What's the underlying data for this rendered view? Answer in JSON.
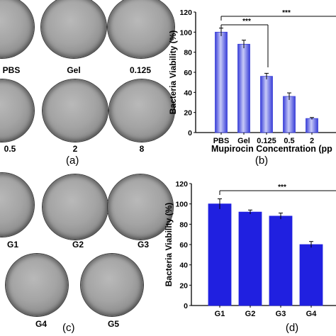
{
  "panel_a": {
    "letter": "(a)",
    "dishes": [
      "PBS",
      "Gel",
      "0.125",
      "0.5",
      "2",
      "8"
    ]
  },
  "panel_c": {
    "letter": "(c)",
    "dishes": [
      "G1",
      "G2",
      "G3",
      "G4",
      "G5"
    ]
  },
  "panel_b_letter": "(b)",
  "panel_d_letter": "(d)",
  "colors": {
    "bar": "#2020e0",
    "bar_b_light": "#aeb2f6",
    "bar_b_dark": "#3a3fd8"
  },
  "chart_data": [
    {
      "type": "bar",
      "categories": [
        "PBS",
        "Gel",
        "0.125",
        "0.5",
        "2"
      ],
      "values": [
        100,
        88,
        56,
        36,
        14
      ],
      "errors": [
        4,
        4,
        3,
        3.5,
        1
      ],
      "ylabel": "Bacteria Viability (%)",
      "xlabel": "Mupirocin Concentration (pp",
      "ylim": [
        0,
        120
      ],
      "yticks": [
        "0",
        "20",
        "40",
        "60",
        "80",
        "100",
        "120"
      ],
      "significance": [
        "***",
        "***"
      ]
    },
    {
      "type": "bar",
      "categories": [
        "G1",
        "G2",
        "G3",
        "G4"
      ],
      "values": [
        100,
        92,
        88,
        60
      ],
      "errors": [
        5,
        2,
        3,
        3
      ],
      "ylabel": "Bacteria Viability (%)",
      "ylim": [
        0,
        120
      ],
      "yticks": [
        "0",
        "20",
        "40",
        "60",
        "80",
        "100",
        "120"
      ],
      "significance": [
        "***"
      ]
    }
  ]
}
